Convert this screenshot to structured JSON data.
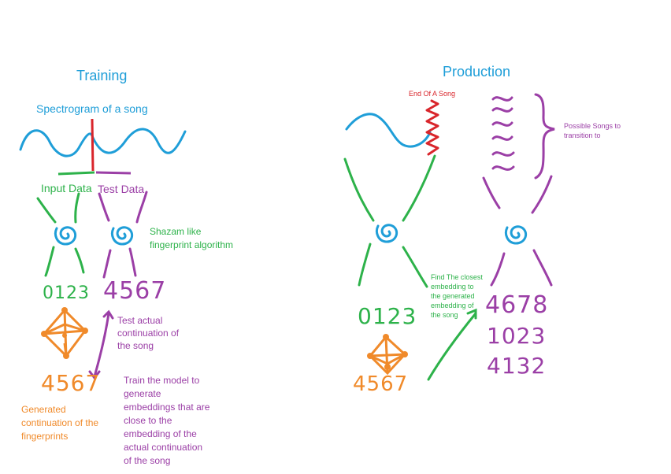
{
  "colors": {
    "blue": "#1f9ed8",
    "green": "#2db24a",
    "purple": "#9b3fa6",
    "orange": "#f08a2a",
    "red": "#d9252b"
  },
  "training": {
    "title": "Training",
    "spectrogram_label": "Spectrogram of a song",
    "input_label": "Input Data",
    "test_label": "Test Data",
    "algo_label": "Shazam like\nfingerprint algorithm",
    "input_fingerprints": "0123",
    "test_fingerprints": "4567",
    "test_note": "Test actual\ncontinuation of\nthe song",
    "generated_fingerprints": "4567",
    "generated_label": "Generated\ncontinuation of the\nfingerprints",
    "train_note": "Train the model to\ngenerate\nembeddings that are\nclose to the\nembedding of the\nactual continuation\nof the song"
  },
  "production": {
    "title": "Production",
    "end_label": "End Of A Song",
    "possible_label": "Possible Songs to\ntransition to",
    "find_note": "Find The closest\nembedding to\nthe generated\nembedding of\nthe song",
    "input_fingerprints": "0123",
    "generated_fingerprints": "4567",
    "candidates": [
      "4678",
      "1023",
      "4132"
    ]
  }
}
